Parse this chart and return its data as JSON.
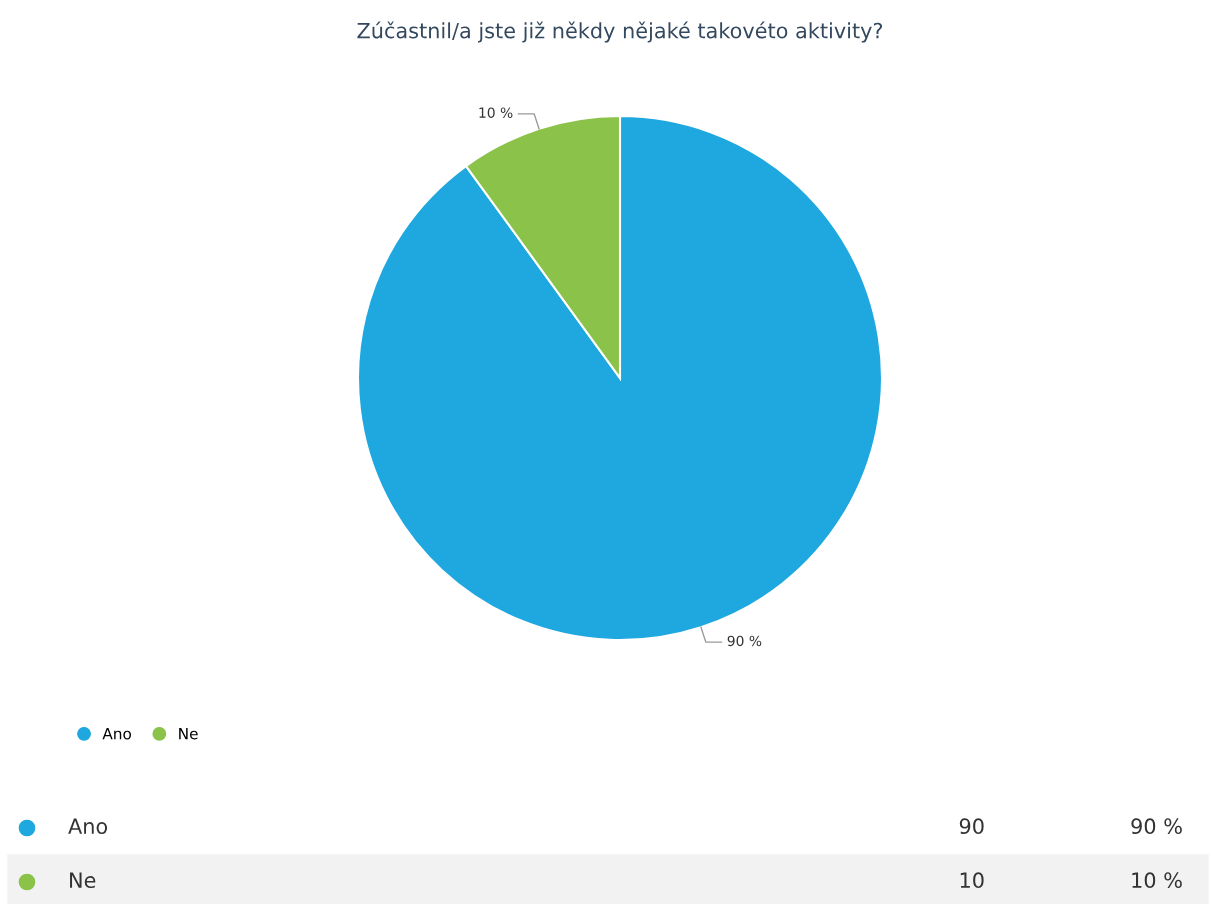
{
  "chart_data": {
    "type": "pie",
    "title": "Zúčastnil/a jste již někdy nějaké takovéto aktivity?",
    "categories": [
      "Ano",
      "Ne"
    ],
    "values": [
      90,
      10
    ],
    "colors": [
      "#1fa8df",
      "#8bc34a"
    ],
    "value_labels": [
      "90 %",
      "10 %"
    ],
    "data_labels": true,
    "annotations": [
      "90",
      "10"
    ],
    "legend": "bottom left"
  }
}
